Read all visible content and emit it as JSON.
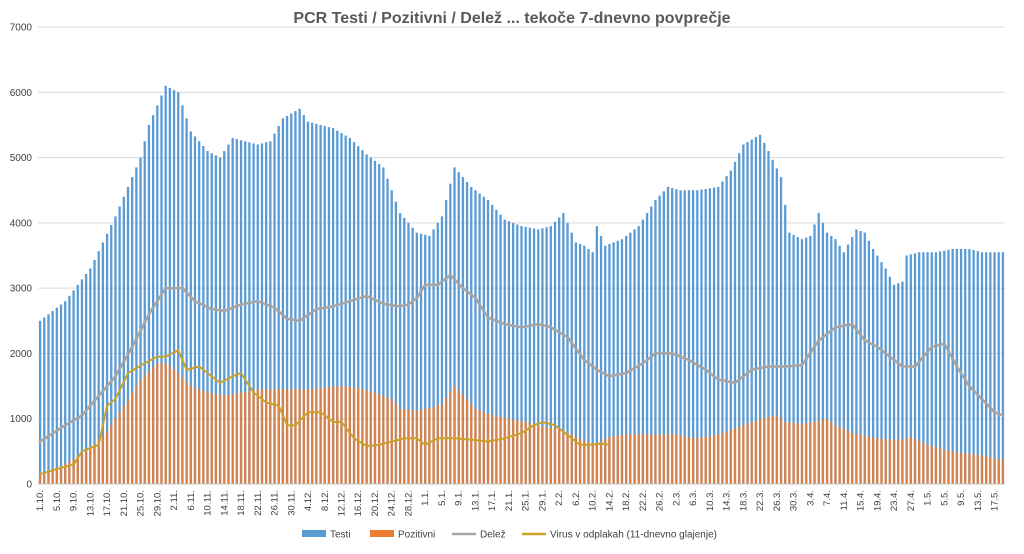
{
  "chart_data": {
    "type": "bar",
    "title": "PCR Testi / Pozitivni / Delež ... tekoče 7-dnevno povprečje",
    "ylim": [
      0,
      7000
    ],
    "yticks": [
      0,
      1000,
      2000,
      3000,
      4000,
      5000,
      6000,
      7000
    ],
    "grid": true,
    "legend_position": "bottom",
    "x_tick_labels": [
      "1.10.",
      "5.10.",
      "9.10.",
      "13.10.",
      "17.10.",
      "21.10.",
      "25.10.",
      "29.10.",
      "2.11.",
      "6.11.",
      "10.11.",
      "14.11.",
      "18.11.",
      "22.11.",
      "26.11.",
      "30.11.",
      "4.12.",
      "8.12.",
      "12.12.",
      "16.12.",
      "20.12.",
      "24.12.",
      "28.12.",
      "1.1.",
      "5.1.",
      "9.1.",
      "13.1.",
      "17.1.",
      "21.1.",
      "25.1.",
      "29.1.",
      "2.2.",
      "6.2.",
      "10.2.",
      "14.2.",
      "18.2.",
      "22.2.",
      "26.2.",
      "2.3.",
      "6.3.",
      "10.3.",
      "14.3.",
      "18.3.",
      "22.3.",
      "26.3.",
      "30.3.",
      "3.4.",
      "7.4.",
      "11.4.",
      "15.4.",
      "19.4.",
      "23.4.",
      "27.4.",
      "1.5.",
      "5.5.",
      "9.5.",
      "13.5.",
      "17.5."
    ],
    "x_tick_every": 4,
    "series_keyframes": {
      "testi": [
        [
          0,
          2500
        ],
        [
          6,
          2800
        ],
        [
          12,
          3300
        ],
        [
          18,
          4100
        ],
        [
          24,
          5000
        ],
        [
          26,
          5500
        ],
        [
          30,
          6100
        ],
        [
          33,
          6000
        ],
        [
          36,
          5400
        ],
        [
          40,
          5100
        ],
        [
          43,
          5000
        ],
        [
          46,
          5300
        ],
        [
          49,
          5250
        ],
        [
          52,
          5200
        ],
        [
          55,
          5250
        ],
        [
          58,
          5600
        ],
        [
          62,
          5750
        ],
        [
          64,
          5550
        ],
        [
          70,
          5450
        ],
        [
          74,
          5300
        ],
        [
          78,
          5050
        ],
        [
          82,
          4850
        ],
        [
          86,
          4150
        ],
        [
          90,
          3850
        ],
        [
          93,
          3800
        ],
        [
          96,
          4100
        ],
        [
          99,
          4850
        ],
        [
          103,
          4550
        ],
        [
          107,
          4350
        ],
        [
          111,
          4050
        ],
        [
          115,
          3950
        ],
        [
          119,
          3900
        ],
        [
          122,
          3950
        ],
        [
          125,
          4150
        ],
        [
          128,
          3700
        ],
        [
          130,
          3650
        ],
        [
          132,
          3550
        ],
        [
          133,
          3950
        ],
        [
          135,
          3650
        ],
        [
          139,
          3750
        ],
        [
          143,
          3950
        ],
        [
          147,
          4350
        ],
        [
          150,
          4550
        ],
        [
          153,
          4500
        ],
        [
          157,
          4500
        ],
        [
          162,
          4550
        ],
        [
          165,
          4800
        ],
        [
          168,
          5200
        ],
        [
          172,
          5350
        ],
        [
          174,
          5100
        ],
        [
          177,
          4700
        ],
        [
          179,
          3850
        ],
        [
          182,
          3750
        ],
        [
          184,
          3800
        ],
        [
          186,
          4150
        ],
        [
          188,
          3850
        ],
        [
          190,
          3750
        ],
        [
          192,
          3550
        ],
        [
          195,
          3900
        ],
        [
          197,
          3850
        ],
        [
          199,
          3600
        ],
        [
          202,
          3300
        ],
        [
          204,
          3050
        ],
        [
          206,
          3100
        ],
        [
          207,
          3500
        ],
        [
          210,
          3550
        ],
        [
          214,
          3550
        ],
        [
          218,
          3600
        ],
        [
          222,
          3600
        ],
        [
          225,
          3550
        ],
        [
          229,
          3550
        ]
      ],
      "pozitivni": [
        [
          0,
          150
        ],
        [
          6,
          300
        ],
        [
          12,
          550
        ],
        [
          16,
          800
        ],
        [
          20,
          1200
        ],
        [
          24,
          1600
        ],
        [
          28,
          1850
        ],
        [
          30,
          1850
        ],
        [
          33,
          1700
        ],
        [
          36,
          1500
        ],
        [
          40,
          1400
        ],
        [
          44,
          1350
        ],
        [
          48,
          1400
        ],
        [
          52,
          1450
        ],
        [
          56,
          1450
        ],
        [
          60,
          1450
        ],
        [
          64,
          1450
        ],
        [
          68,
          1480
        ],
        [
          72,
          1500
        ],
        [
          76,
          1470
        ],
        [
          80,
          1400
        ],
        [
          84,
          1300
        ],
        [
          86,
          1150
        ],
        [
          90,
          1120
        ],
        [
          94,
          1180
        ],
        [
          96,
          1230
        ],
        [
          99,
          1500
        ],
        [
          102,
          1300
        ],
        [
          104,
          1150
        ],
        [
          108,
          1050
        ],
        [
          112,
          1000
        ],
        [
          116,
          950
        ],
        [
          120,
          880
        ],
        [
          124,
          850
        ],
        [
          128,
          720
        ],
        [
          130,
          650
        ],
        [
          133,
          620
        ],
        [
          136,
          720
        ],
        [
          140,
          760
        ],
        [
          144,
          760
        ],
        [
          148,
          760
        ],
        [
          152,
          760
        ],
        [
          156,
          700
        ],
        [
          160,
          730
        ],
        [
          164,
          800
        ],
        [
          168,
          900
        ],
        [
          172,
          1000
        ],
        [
          176,
          1050
        ],
        [
          178,
          950
        ],
        [
          182,
          920
        ],
        [
          185,
          950
        ],
        [
          188,
          1000
        ],
        [
          190,
          900
        ],
        [
          194,
          780
        ],
        [
          198,
          720
        ],
        [
          202,
          680
        ],
        [
          206,
          680
        ],
        [
          208,
          720
        ],
        [
          212,
          600
        ],
        [
          216,
          520
        ],
        [
          220,
          480
        ],
        [
          224,
          450
        ],
        [
          229,
          380
        ]
      ],
      "delez": [
        [
          0,
          650
        ],
        [
          6,
          900
        ],
        [
          10,
          1050
        ],
        [
          14,
          1350
        ],
        [
          18,
          1650
        ],
        [
          22,
          2100
        ],
        [
          26,
          2600
        ],
        [
          30,
          3000
        ],
        [
          34,
          3000
        ],
        [
          37,
          2800
        ],
        [
          41,
          2680
        ],
        [
          44,
          2650
        ],
        [
          48,
          2750
        ],
        [
          52,
          2800
        ],
        [
          56,
          2700
        ],
        [
          59,
          2530
        ],
        [
          62,
          2500
        ],
        [
          66,
          2680
        ],
        [
          70,
          2720
        ],
        [
          74,
          2800
        ],
        [
          78,
          2880
        ],
        [
          82,
          2760
        ],
        [
          86,
          2720
        ],
        [
          88,
          2750
        ],
        [
          90,
          2850
        ],
        [
          92,
          3050
        ],
        [
          95,
          3050
        ],
        [
          98,
          3200
        ],
        [
          101,
          3000
        ],
        [
          104,
          2850
        ],
        [
          107,
          2550
        ],
        [
          111,
          2450
        ],
        [
          115,
          2400
        ],
        [
          119,
          2450
        ],
        [
          122,
          2400
        ],
        [
          126,
          2250
        ],
        [
          130,
          1900
        ],
        [
          133,
          1750
        ],
        [
          136,
          1650
        ],
        [
          140,
          1700
        ],
        [
          144,
          1850
        ],
        [
          147,
          2000
        ],
        [
          151,
          2000
        ],
        [
          155,
          1900
        ],
        [
          159,
          1750
        ],
        [
          162,
          1600
        ],
        [
          166,
          1550
        ],
        [
          170,
          1750
        ],
        [
          174,
          1800
        ],
        [
          178,
          1800
        ],
        [
          182,
          1820
        ],
        [
          186,
          2200
        ],
        [
          190,
          2400
        ],
        [
          194,
          2450
        ],
        [
          197,
          2200
        ],
        [
          200,
          2100
        ],
        [
          203,
          1950
        ],
        [
          206,
          1800
        ],
        [
          209,
          1800
        ],
        [
          213,
          2100
        ],
        [
          216,
          2150
        ],
        [
          219,
          1800
        ],
        [
          222,
          1500
        ],
        [
          225,
          1300
        ],
        [
          228,
          1100
        ],
        [
          230,
          1050
        ]
      ],
      "virus": [
        [
          0,
          150
        ],
        [
          4,
          230
        ],
        [
          8,
          300
        ],
        [
          10,
          500
        ],
        [
          14,
          600
        ],
        [
          16,
          1200
        ],
        [
          18,
          1300
        ],
        [
          21,
          1700
        ],
        [
          25,
          1850
        ],
        [
          28,
          1950
        ],
        [
          30,
          1950
        ],
        [
          33,
          2050
        ],
        [
          35,
          1750
        ],
        [
          38,
          1800
        ],
        [
          41,
          1650
        ],
        [
          43,
          1550
        ],
        [
          46,
          1650
        ],
        [
          48,
          1700
        ],
        [
          51,
          1400
        ],
        [
          54,
          1250
        ],
        [
          57,
          1200
        ],
        [
          59,
          900
        ],
        [
          61,
          900
        ],
        [
          64,
          1100
        ],
        [
          67,
          1100
        ],
        [
          70,
          950
        ],
        [
          72,
          950
        ],
        [
          75,
          700
        ],
        [
          78,
          580
        ],
        [
          81,
          600
        ],
        [
          84,
          650
        ],
        [
          87,
          700
        ],
        [
          90,
          700
        ],
        [
          92,
          600
        ],
        [
          95,
          700
        ],
        [
          99,
          700
        ],
        [
          103,
          680
        ],
        [
          107,
          650
        ],
        [
          111,
          700
        ],
        [
          115,
          780
        ],
        [
          118,
          900
        ],
        [
          120,
          950
        ],
        [
          123,
          900
        ],
        [
          126,
          750
        ],
        [
          129,
          600
        ],
        [
          131,
          600
        ],
        [
          134,
          620
        ],
        [
          136,
          600
        ]
      ]
    },
    "series": [
      {
        "name": "Testi",
        "kind": "bar",
        "color": "#5B9BD5"
      },
      {
        "name": "Pozitivni",
        "kind": "bar",
        "color": "#ED7D31"
      },
      {
        "name": "Delež",
        "kind": "line",
        "color": "#A5A5A5"
      },
      {
        "name": "Virus v odplakah (11-dnevno glajenje)",
        "kind": "line",
        "color": "#C9A227"
      }
    ],
    "n_days": 231
  }
}
